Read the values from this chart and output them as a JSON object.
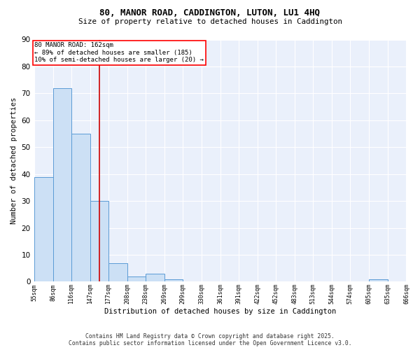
{
  "title_line1": "80, MANOR ROAD, CADDINGTON, LUTON, LU1 4HQ",
  "title_line2": "Size of property relative to detached houses in Caddington",
  "xlabel": "Distribution of detached houses by size in Caddington",
  "ylabel": "Number of detached properties",
  "bin_edges": [
    55,
    86,
    116,
    147,
    177,
    208,
    238,
    269,
    299,
    330,
    361,
    391,
    422,
    452,
    483,
    513,
    544,
    574,
    605,
    635,
    666
  ],
  "bar_heights": [
    39,
    72,
    55,
    30,
    7,
    2,
    3,
    1,
    0,
    0,
    0,
    0,
    0,
    0,
    0,
    0,
    0,
    0,
    1,
    0
  ],
  "bar_color": "#cce0f5",
  "bar_edge_color": "#5b9bd5",
  "red_line_x": 162,
  "annotation_text": "80 MANOR ROAD: 162sqm\n← 89% of detached houses are smaller (185)\n10% of semi-detached houses are larger (20) →",
  "annotation_box_color": "white",
  "annotation_box_edge_color": "red",
  "red_line_color": "#cc0000",
  "ylim": [
    0,
    90
  ],
  "yticks": [
    0,
    10,
    20,
    30,
    40,
    50,
    60,
    70,
    80,
    90
  ],
  "bg_color": "#eaf0fb",
  "grid_color": "#ffffff",
  "footer_line1": "Contains HM Land Registry data © Crown copyright and database right 2025.",
  "footer_line2": "Contains public sector information licensed under the Open Government Licence v3.0."
}
